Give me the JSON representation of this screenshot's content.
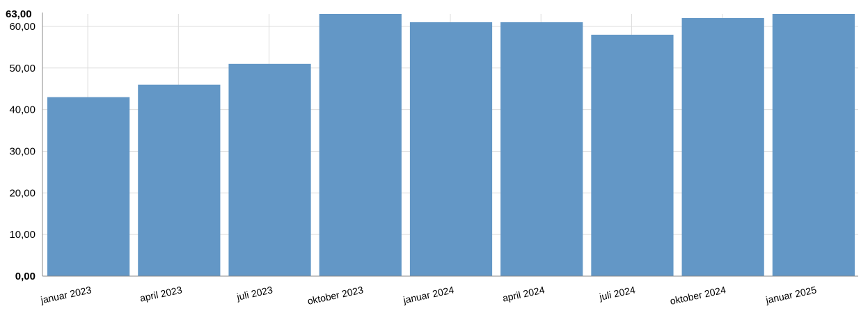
{
  "chart_data": {
    "type": "bar",
    "categories": [
      "januar 2023",
      "april 2023",
      "juli 2023",
      "oktober 2023",
      "januar 2024",
      "april 2024",
      "juli 2024",
      "oktober 2024",
      "januar 2025"
    ],
    "values": [
      43,
      46,
      51,
      63,
      61,
      61,
      58,
      62,
      63
    ],
    "ylim": [
      0,
      63
    ],
    "y_ticks": [
      "0,00",
      "10,00",
      "20,00",
      "30,00",
      "40,00",
      "50,00",
      "60,00"
    ],
    "y_max_label": "63,00",
    "y_min_label": "0,00",
    "grid": true,
    "bar_color": "#6397c6"
  }
}
